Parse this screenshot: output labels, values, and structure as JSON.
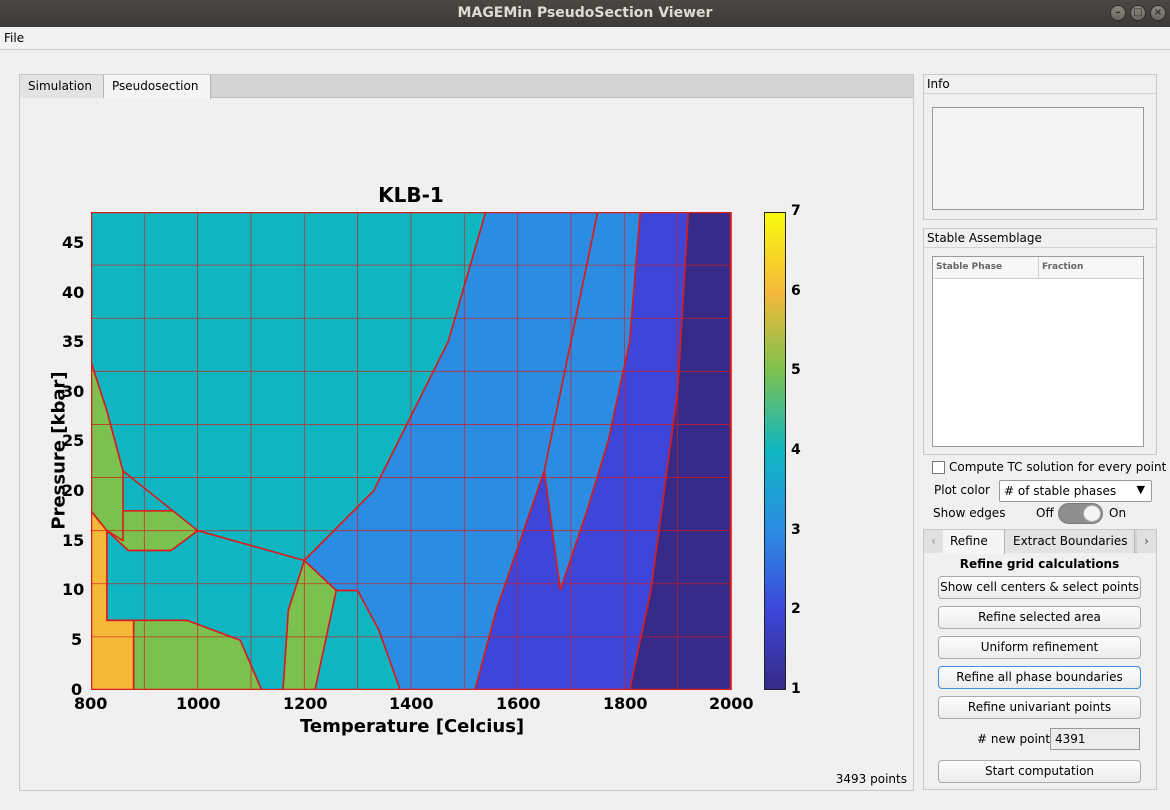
{
  "window": {
    "title": "MAGEMin PseudoSection Viewer"
  },
  "menu": {
    "file": "File"
  },
  "tabs": {
    "simulation": "Simulation",
    "pseudosection": "Pseudosection"
  },
  "plot": {
    "title": "KLB-1",
    "xlabel": "Temperature [Celcius]",
    "ylabel": "Pressure [kbar]",
    "points_label": "3493 points"
  },
  "chart_data": {
    "type": "heatmap",
    "title": "KLB-1",
    "xlabel": "Temperature [Celcius]",
    "ylabel": "Pressure [kbar]",
    "xlim": [
      800,
      2000
    ],
    "ylim": [
      0,
      48
    ],
    "xticks": [
      800,
      1000,
      1200,
      1400,
      1600,
      1800,
      2000
    ],
    "yticks": [
      0,
      5,
      10,
      15,
      20,
      25,
      30,
      35,
      40,
      45
    ],
    "colorbar": {
      "ticks": [
        1,
        2,
        3,
        4,
        5,
        6,
        7
      ],
      "range": [
        1,
        7
      ],
      "colormap": "parula"
    },
    "grid_edge_color": "#d81b1b",
    "regions": [
      {
        "value": 6,
        "polygon": [
          [
            800,
            0
          ],
          [
            880,
            0
          ],
          [
            880,
            7
          ],
          [
            830,
            7
          ],
          [
            830,
            16
          ],
          [
            800,
            18
          ]
        ]
      },
      {
        "value": 5,
        "polygon": [
          [
            800,
            18
          ],
          [
            830,
            16
          ],
          [
            870,
            14
          ],
          [
            950,
            14
          ],
          [
            1000,
            16
          ],
          [
            1000,
            18
          ],
          [
            800,
            18
          ]
        ]
      },
      {
        "value": 5,
        "polygon": [
          [
            800,
            33
          ],
          [
            830,
            28
          ],
          [
            860,
            22
          ],
          [
            860,
            15
          ],
          [
            830,
            16
          ],
          [
            800,
            18
          ]
        ]
      },
      {
        "value": 5,
        "polygon": [
          [
            880,
            0
          ],
          [
            1120,
            0
          ],
          [
            1080,
            5
          ],
          [
            980,
            7
          ],
          [
            880,
            7
          ]
        ]
      },
      {
        "value": 5,
        "polygon": [
          [
            1160,
            0
          ],
          [
            1220,
            0
          ],
          [
            1260,
            10
          ],
          [
            1200,
            13
          ],
          [
            1170,
            8
          ]
        ]
      },
      {
        "value": 4,
        "polygon": [
          [
            800,
            48
          ],
          [
            1540,
            48
          ],
          [
            1470,
            35
          ],
          [
            1330,
            20
          ],
          [
            1200,
            13
          ],
          [
            1000,
            16
          ],
          [
            860,
            22
          ],
          [
            830,
            28
          ],
          [
            800,
            33
          ]
        ]
      },
      {
        "value": 4,
        "polygon": [
          [
            880,
            7
          ],
          [
            980,
            7
          ],
          [
            1080,
            5
          ],
          [
            1120,
            0
          ],
          [
            1160,
            0
          ],
          [
            1170,
            8
          ],
          [
            1200,
            13
          ],
          [
            1000,
            16
          ],
          [
            950,
            14
          ],
          [
            870,
            14
          ],
          [
            830,
            16
          ],
          [
            830,
            7
          ]
        ]
      },
      {
        "value": 4,
        "polygon": [
          [
            1220,
            0
          ],
          [
            1380,
            0
          ],
          [
            1340,
            6
          ],
          [
            1300,
            10
          ],
          [
            1260,
            10
          ]
        ]
      },
      {
        "value": 3,
        "polygon": [
          [
            1540,
            48
          ],
          [
            1750,
            48
          ],
          [
            1650,
            22
          ],
          [
            1560,
            8
          ],
          [
            1520,
            0
          ],
          [
            1380,
            0
          ],
          [
            1340,
            6
          ],
          [
            1300,
            10
          ],
          [
            1260,
            10
          ],
          [
            1200,
            13
          ],
          [
            1330,
            20
          ],
          [
            1470,
            35
          ]
        ]
      },
      {
        "value": 3,
        "polygon": [
          [
            1750,
            48
          ],
          [
            1830,
            48
          ],
          [
            1810,
            35
          ],
          [
            1770,
            25
          ],
          [
            1730,
            18
          ],
          [
            1680,
            10
          ],
          [
            1650,
            22
          ]
        ]
      },
      {
        "value": 2,
        "polygon": [
          [
            1520,
            0
          ],
          [
            1810,
            0
          ],
          [
            1850,
            10
          ],
          [
            1900,
            30
          ],
          [
            1920,
            48
          ],
          [
            1830,
            48
          ],
          [
            1810,
            35
          ],
          [
            1770,
            25
          ],
          [
            1730,
            18
          ],
          [
            1680,
            10
          ],
          [
            1650,
            22
          ],
          [
            1560,
            8
          ]
        ]
      },
      {
        "value": 1,
        "polygon": [
          [
            1810,
            0
          ],
          [
            2000,
            0
          ],
          [
            2000,
            48
          ],
          [
            1920,
            48
          ],
          [
            1900,
            30
          ],
          [
            1850,
            10
          ]
        ]
      }
    ]
  },
  "info": {
    "title": "Info"
  },
  "stable": {
    "title": "Stable Assemblage",
    "col_phase": "Stable Phase",
    "col_fraction": "Fraction"
  },
  "controls": {
    "compute_tc": "Compute TC solution for every point",
    "plot_color_label": "Plot color",
    "plot_color_value": "# of stable phases",
    "show_edges_label": "Show edges",
    "off": "Off",
    "on": "On",
    "show_edges_on": true
  },
  "refine": {
    "tab_refine": "Refine",
    "tab_extract": "Extract Boundaries",
    "heading": "Refine grid calculations",
    "btn_cell_centers": "Show cell centers & select points",
    "btn_refine_selected": "Refine selected area",
    "btn_uniform": "Uniform refinement",
    "btn_all_boundaries": "Refine all phase boundaries",
    "btn_univariant": "Refine univariant points",
    "new_points_label": "# new points",
    "new_points_value": "4391",
    "btn_start": "Start computation"
  }
}
